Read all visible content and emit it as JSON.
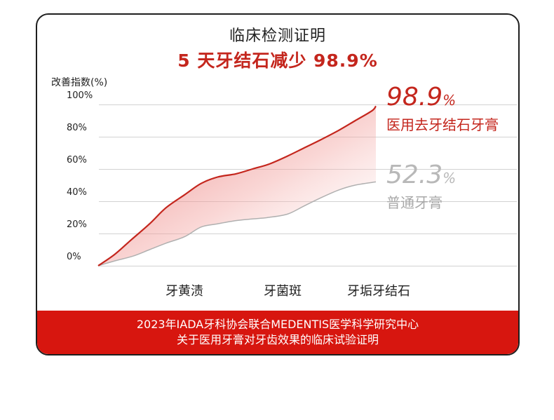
{
  "title": "临床检测证明",
  "subtitle": "5 天牙结石减少 98.9%",
  "chart_data": {
    "type": "area",
    "ylabel": "改善指数(%)",
    "yticks": [
      "100%",
      "80%",
      "60%",
      "40%",
      "20%",
      "0%"
    ],
    "categories": [
      "牙黄渍",
      "牙菌斑",
      "牙垢牙结石"
    ],
    "ylim": [
      0,
      100
    ],
    "series": [
      {
        "name": "医用去牙结石牙膏",
        "value_label": "98.9",
        "value_unit": "%",
        "color": "#c4261d",
        "points": [
          [
            0,
            0
          ],
          [
            0.08,
            7
          ],
          [
            0.16,
            16
          ],
          [
            0.25,
            26
          ],
          [
            0.33,
            36
          ],
          [
            0.42,
            44
          ],
          [
            0.5,
            51
          ],
          [
            0.58,
            55
          ],
          [
            0.67,
            57
          ],
          [
            0.75,
            60
          ],
          [
            0.83,
            63
          ],
          [
            0.92,
            68
          ],
          [
            1.0,
            73
          ],
          [
            1.08,
            78
          ],
          [
            1.17,
            84
          ],
          [
            1.25,
            90
          ],
          [
            1.33,
            96
          ],
          [
            1.35,
            99
          ]
        ]
      },
      {
        "name": "普通牙膏",
        "value_label": "52.3",
        "value_unit": "%",
        "color": "#b0b0b0",
        "points": [
          [
            0,
            0
          ],
          [
            0.08,
            3
          ],
          [
            0.17,
            6
          ],
          [
            0.25,
            10
          ],
          [
            0.33,
            14
          ],
          [
            0.42,
            18
          ],
          [
            0.5,
            24
          ],
          [
            0.58,
            26
          ],
          [
            0.67,
            28
          ],
          [
            0.75,
            29
          ],
          [
            0.83,
            30
          ],
          [
            0.92,
            32
          ],
          [
            1.0,
            37
          ],
          [
            1.08,
            42
          ],
          [
            1.17,
            47
          ],
          [
            1.25,
            50
          ],
          [
            1.35,
            52
          ]
        ]
      }
    ],
    "legend": "right",
    "grid": true
  },
  "footer": {
    "line1": "2023年IADA牙科协会联合MEDENTIS医学科学研究中心",
    "line2": "关于医用牙膏对牙齿效果的临床试验证明"
  }
}
